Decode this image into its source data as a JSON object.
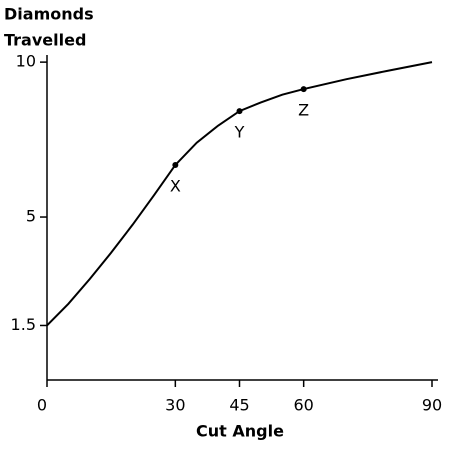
{
  "chart_data": {
    "type": "line",
    "y_label": [
      "Diamonds",
      "Travelled"
    ],
    "x_label": "Cut Angle",
    "x": [
      0,
      5,
      10,
      15,
      20,
      25,
      30,
      35,
      40,
      45,
      50,
      55,
      60,
      70,
      80,
      90
    ],
    "values": [
      1.5,
      2.2,
      3.0,
      3.85,
      4.75,
      5.7,
      6.68,
      7.4,
      7.95,
      8.42,
      8.7,
      8.95,
      9.13,
      9.45,
      9.73,
      10
    ],
    "color": "#000000",
    "points": {
      "labels": [
        "X",
        "Y",
        "Z"
      ],
      "x": [
        30,
        45,
        60
      ],
      "values": [
        6.68,
        8.42,
        9.13
      ]
    },
    "xlim": [
      0,
      90
    ],
    "ylim": [
      -0.26,
      10.23
    ],
    "xticks": [
      0,
      30,
      45,
      60,
      90
    ],
    "yticks": [
      1.5,
      5,
      10
    ]
  }
}
